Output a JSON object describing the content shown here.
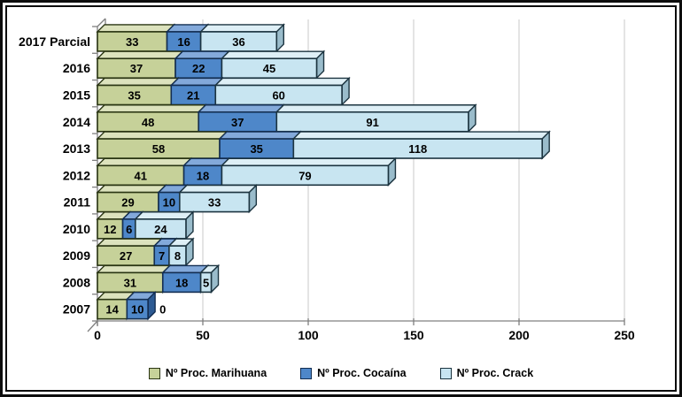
{
  "chart_data": {
    "type": "bar",
    "variant": "3d-horizontal-stacked",
    "title": "",
    "categories": [
      "2017 Parcial",
      "2016",
      "2015",
      "2014",
      "2013",
      "2012",
      "2011",
      "2010",
      "2009",
      "2008",
      "2007"
    ],
    "series": [
      {
        "name": "Nº Proc. Marihuana",
        "values": [
          33,
          37,
          35,
          48,
          58,
          41,
          29,
          12,
          27,
          31,
          14
        ],
        "color": "#C6D199",
        "color_top": "#DCE2BD",
        "color_side": "#8A9A5B",
        "color_border": "#2A3513"
      },
      {
        "name": "Nº Proc. Cocaína",
        "values": [
          16,
          22,
          21,
          37,
          35,
          18,
          10,
          6,
          7,
          18,
          10
        ],
        "color": "#4E87C9",
        "color_top": "#83A9DA",
        "color_side": "#2C5A93",
        "color_border": "#132E52"
      },
      {
        "name": "Nº Proc. Crack",
        "values": [
          36,
          45,
          60,
          91,
          118,
          79,
          33,
          24,
          8,
          5,
          0
        ],
        "color": "#C8E5F1",
        "color_top": "#DEEFF6",
        "color_side": "#9ABCCB",
        "color_border": "#1C3440"
      }
    ],
    "xticks": [
      0,
      50,
      100,
      150,
      200,
      250
    ],
    "xlim": [
      0,
      250
    ],
    "grid": true,
    "legend_position": "bottom",
    "axis_color": "#808080",
    "grid_color": "#C8C8C8",
    "label_color": "#000000"
  }
}
